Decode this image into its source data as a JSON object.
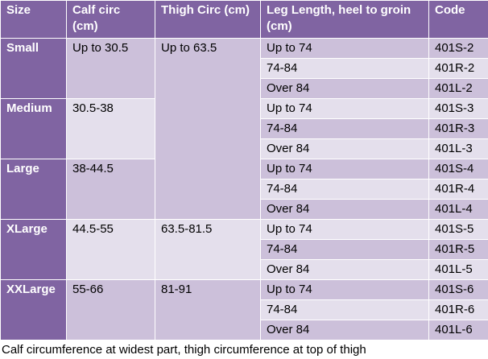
{
  "table": {
    "header": [
      "Size",
      "Calf circ (cm)",
      "Thigh Circ (cm)",
      "Leg Length, heel to groin (cm)",
      "Code"
    ],
    "groups": [
      {
        "size": "Small",
        "calf": "Up to 30.5",
        "thigh": "Up to 63.5",
        "rows": [
          [
            "Up to 74",
            "401S-2"
          ],
          [
            "74-84",
            "401R-2"
          ],
          [
            "Over 84",
            "401L-2"
          ]
        ]
      },
      {
        "size": "Medium",
        "calf": "30.5-38",
        "rows": [
          [
            "Up to 74",
            "401S-3"
          ],
          [
            "74-84",
            "401R-3"
          ],
          [
            "Over 84",
            "401L-3"
          ]
        ]
      },
      {
        "size": "Large",
        "calf": "38-44.5",
        "rows": [
          [
            "Up to 74",
            "401S-4"
          ],
          [
            "74-84",
            "401R-4"
          ],
          [
            "Over 84",
            "401L-4"
          ]
        ]
      },
      {
        "size": "XLarge",
        "calf": "44.5-55",
        "thigh": "63.5-81.5",
        "rows": [
          [
            "Up to 74",
            "401S-5"
          ],
          [
            "74-84",
            "401R-5"
          ],
          [
            "Over 84",
            "401L-5"
          ]
        ]
      },
      {
        "size": "XXLarge",
        "calf": "55-66",
        "thigh": "81-91",
        "rows": [
          [
            "Up to 74",
            "401S-6"
          ],
          [
            "74-84",
            "401R-6"
          ],
          [
            "Over 84",
            "401L-6"
          ]
        ]
      }
    ],
    "caption": "Calf circumference at widest part, thigh circumference at top of thigh"
  }
}
